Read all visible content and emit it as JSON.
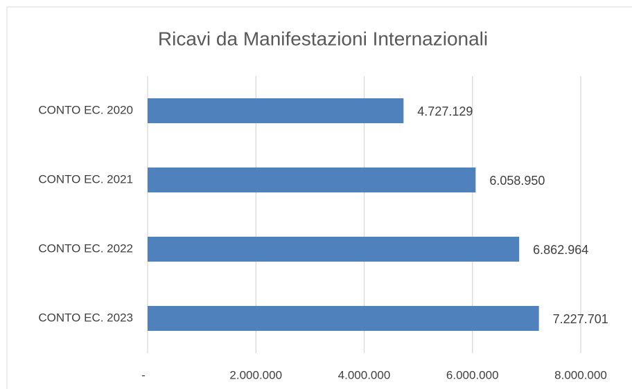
{
  "chart_data": {
    "type": "bar",
    "orientation": "horizontal",
    "title": "Ricavi da Manifestazioni Internazionali",
    "categories": [
      "CONTO EC. 2020",
      "CONTO EC. 2021",
      "CONTO EC. 2022",
      "CONTO EC. 2023"
    ],
    "values": [
      4727129,
      6058950,
      6862964,
      7227701
    ],
    "value_labels": [
      "4.727.129",
      "6.058.950",
      "6.862.964",
      "7.227.701"
    ],
    "color": "#4f81bd",
    "xlim": [
      0,
      8000000
    ],
    "xticks": [
      {
        "value": 0,
        "label": "-"
      },
      {
        "value": 2000000,
        "label": "2.000.000"
      },
      {
        "value": 4000000,
        "label": "4.000.000"
      },
      {
        "value": 6000000,
        "label": "6.000.000"
      },
      {
        "value": 8000000,
        "label": "8.000.000"
      }
    ],
    "grid": true
  }
}
